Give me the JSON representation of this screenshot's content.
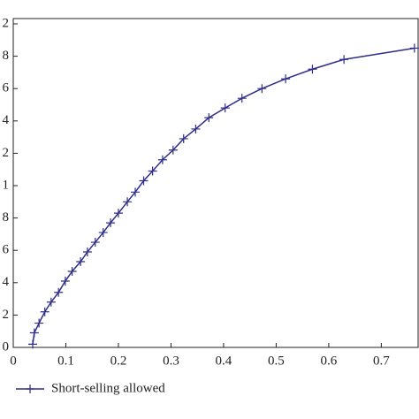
{
  "chart_data": {
    "type": "line",
    "x": [
      0.037,
      0.04,
      0.049,
      0.06,
      0.072,
      0.086,
      0.099,
      0.112,
      0.128,
      0.141,
      0.156,
      0.171,
      0.185,
      0.2,
      0.217,
      0.232,
      0.248,
      0.265,
      0.284,
      0.304,
      0.324,
      0.347,
      0.372,
      0.403,
      0.435,
      0.473,
      0.518,
      0.569,
      0.629,
      0.763
    ],
    "series": [
      {
        "name": "Short-selling allowed",
        "color": "#2e2e8a",
        "values": [
          0.002,
          0.009,
          0.015,
          0.022,
          0.028,
          0.034,
          0.041,
          0.047,
          0.053,
          0.059,
          0.065,
          0.071,
          0.077,
          0.083,
          0.09,
          0.096,
          0.103,
          0.109,
          0.116,
          0.122,
          0.129,
          0.135,
          0.142,
          0.148,
          0.154,
          0.16,
          0.166,
          0.172,
          0.178,
          0.185
        ]
      }
    ],
    "xlim": [
      0,
      0.77
    ],
    "xticks": [
      0,
      0.1,
      0.2,
      0.3,
      0.4,
      0.5,
      0.6,
      0.7
    ],
    "ylim": [
      0,
      0.2
    ],
    "yticks": [
      0,
      {
        "value": 0.02,
        "label": "2"
      },
      {
        "value": 0.04,
        "label": "4"
      },
      {
        "value": 0.06,
        "label": "6"
      },
      {
        "value": 0.08,
        "label": "8"
      },
      {
        "value": 0.1,
        "label": "1"
      },
      {
        "value": 0.12,
        "label": "2"
      },
      {
        "value": 0.14,
        "label": "4"
      },
      {
        "value": 0.16,
        "label": "6"
      },
      {
        "value": 0.18,
        "label": "8"
      },
      {
        "value": 0.2,
        "label": "2"
      }
    ],
    "legend": "bottom-left"
  }
}
